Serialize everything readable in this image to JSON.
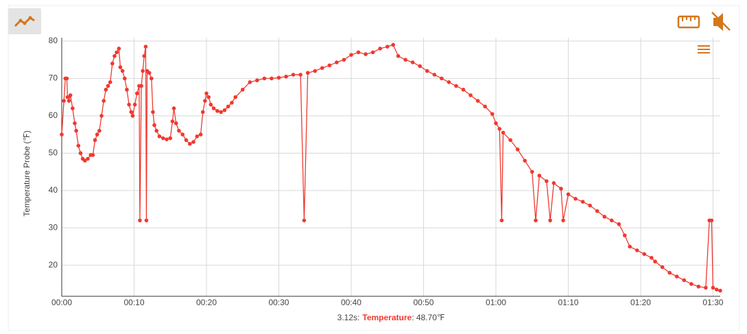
{
  "chart_data": {
    "type": "line",
    "ylabel": "Temperature Probe (℉)",
    "x": [
      0,
      0.3,
      0.5,
      0.7,
      0.8,
      1.0,
      1.2,
      1.5,
      1.8,
      2.0,
      2.3,
      2.6,
      2.9,
      3.2,
      3.6,
      4.0,
      4.3,
      4.6,
      4.9,
      5.2,
      5.5,
      5.8,
      6.1,
      6.4,
      6.7,
      7.0,
      7.3,
      7.6,
      7.9,
      8.1,
      8.4,
      8.7,
      9.0,
      9.3,
      9.6,
      9.8,
      10.1,
      10.4,
      10.7,
      10.8,
      11.0,
      11.2,
      11.4,
      11.6,
      11.7,
      11.8,
      12.1,
      12.4,
      12.6,
      12.8,
      13.1,
      13.5,
      14.0,
      14.5,
      15.0,
      15.3,
      15.5,
      15.8,
      16.2,
      16.7,
      17.2,
      17.7,
      18.2,
      18.7,
      19.2,
      19.5,
      19.8,
      20.0,
      20.3,
      20.6,
      21.0,
      21.5,
      22.0,
      22.5,
      23.0,
      23.5,
      24.0,
      25.0,
      26.0,
      27.0,
      28.0,
      29.0,
      30.0,
      31.0,
      32.0,
      33.0,
      33.5,
      34.0,
      35.0,
      36.0,
      37.0,
      38.0,
      39.0,
      40.0,
      41.0,
      42.0,
      43.0,
      44.0,
      45.0,
      45.8,
      46.5,
      47.5,
      48.5,
      49.5,
      50.5,
      51.5,
      52.5,
      53.5,
      54.5,
      55.5,
      56.5,
      57.5,
      58.5,
      59.5,
      60.0,
      60.5,
      60.8,
      61.0,
      62.0,
      63.0,
      64.0,
      65.0,
      65.5,
      66.0,
      67.0,
      67.5,
      68.0,
      69.0,
      69.3,
      70.0,
      71.0,
      72.0,
      73.0,
      74.0,
      75.0,
      76.0,
      77.0,
      77.8,
      78.5,
      79.5,
      80.5,
      81.5,
      82.0,
      83.0,
      84.0,
      85.0,
      86.0,
      87.0,
      88.0,
      89.0,
      89.5,
      89.8,
      90.0,
      90.5,
      91.0
    ],
    "series": [
      {
        "name": "Temperature",
        "color": "#f0392f",
        "values": [
          55,
          64,
          70,
          70,
          65,
          64,
          65.5,
          62,
          58,
          56,
          52,
          50,
          48.5,
          48,
          48.5,
          49.5,
          49.5,
          53.5,
          55,
          56,
          60,
          64,
          67,
          68,
          69,
          74,
          76,
          77,
          78,
          73,
          72,
          70,
          67,
          63,
          61,
          60,
          63,
          66,
          68,
          32,
          68,
          72,
          76,
          78.5,
          32,
          72,
          71.5,
          70,
          61,
          57.5,
          56,
          54.5,
          54,
          53.7,
          54,
          58.5,
          62,
          58,
          56,
          55,
          53.5,
          52.5,
          53,
          54.5,
          55,
          61,
          64,
          66,
          65,
          63,
          62,
          61.3,
          61,
          61.5,
          62.5,
          63.5,
          65,
          67,
          69,
          69.5,
          70,
          70,
          70.2,
          70.5,
          71,
          71,
          32,
          71.5,
          72,
          72.8,
          73.5,
          74.3,
          75,
          76.3,
          77,
          76.5,
          77,
          78,
          78.5,
          79,
          76,
          75,
          74.3,
          73.3,
          72,
          71,
          70,
          69,
          68,
          67,
          65.5,
          64,
          62.5,
          60.5,
          58,
          56.5,
          32,
          55.5,
          53.5,
          51,
          48,
          45,
          32,
          44,
          42.5,
          32,
          42,
          40.5,
          32,
          39,
          37.8,
          37,
          36,
          34.5,
          33,
          32,
          31,
          28,
          25,
          24,
          23,
          22,
          21,
          19.5,
          18,
          17,
          16,
          15,
          14.3,
          14,
          32,
          32,
          14,
          13.5,
          13.2
        ]
      }
    ],
    "xlim": [
      0,
      91
    ],
    "ylim": [
      11.7,
      80.9
    ],
    "xticks": [
      {
        "value": 0,
        "label": "00:00"
      },
      {
        "value": 10,
        "label": "00:10"
      },
      {
        "value": 20,
        "label": "00:20"
      },
      {
        "value": 30,
        "label": "00:30"
      },
      {
        "value": 40,
        "label": "00:40"
      },
      {
        "value": 50,
        "label": "00:50"
      },
      {
        "value": 60,
        "label": "01:00"
      },
      {
        "value": 70,
        "label": "01:10"
      },
      {
        "value": 80,
        "label": "01:20"
      },
      {
        "value": 90,
        "label": "01:30"
      }
    ],
    "yticks": [
      20,
      30,
      40,
      50,
      60,
      70,
      80
    ],
    "grid": true,
    "readout": {
      "time": "3.12s:",
      "value": ": 48.70℉"
    }
  }
}
